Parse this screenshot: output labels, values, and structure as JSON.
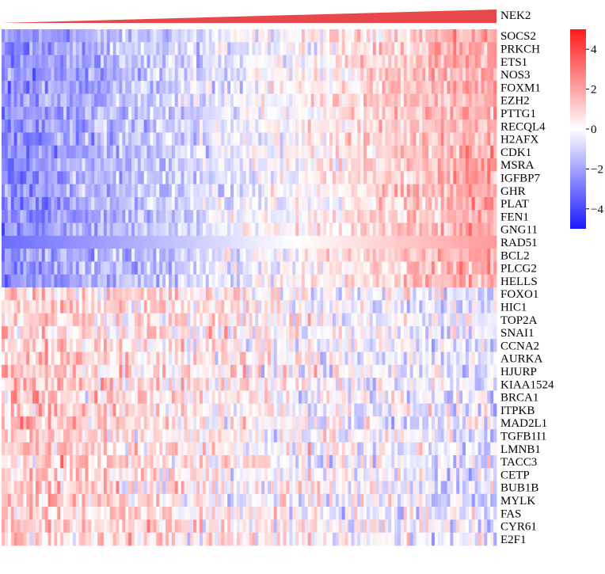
{
  "chart_data": {
    "type": "heatmap",
    "title": "",
    "xlabel": "",
    "ylabel": "",
    "sort_gene": "NEK2",
    "sort_bar_color": "#e8474b",
    "rows": [
      "SOCS2",
      "PRKCH",
      "ETS1",
      "NOS3",
      "FOXM1",
      "EZH2",
      "PTTG1",
      "RECQL4",
      "H2AFX",
      "CDK1",
      "MSRA",
      "IGFBP7",
      "GHR",
      "PLAT",
      "FEN1",
      "GNG11",
      "RAD51",
      "BCL2",
      "PLCG2",
      "HELLS",
      "FOXO1",
      "HIC1",
      "TOP2A",
      "SNAI1",
      "CCNA2",
      "AURKA",
      "HJURP",
      "KIAA1524",
      "BRCA1",
      "ITPKB",
      "MAD2L1",
      "TGFB1I1",
      "LMNB1",
      "TACC3",
      "CETP",
      "BUB1B",
      "MYLK",
      "FAS",
      "CYR61",
      "E2F1"
    ],
    "n_samples": 160,
    "upper_block_trend": "low-to-high with NEK2 (rows SOCS2–HELLS)",
    "lower_block_trend": "high-to-low with NEK2 (rows FOXO1–E2F1)",
    "value_range": [
      -5,
      5
    ],
    "colorbar": {
      "ticks": [
        4,
        2,
        0,
        -2,
        -4
      ],
      "tick_labels": [
        "4",
        "2",
        "0",
        "−2",
        "−4"
      ],
      "colors": {
        "low": "#1a1aff",
        "mid": "#ffffff",
        "high": "#ff1a1a"
      },
      "placement": "right"
    }
  }
}
